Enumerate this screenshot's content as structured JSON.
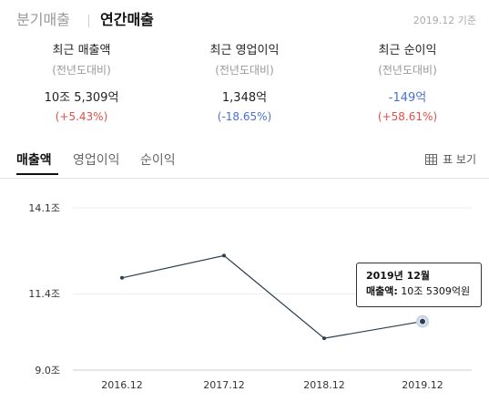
{
  "period_tabs": {
    "quarterly": "분기매출",
    "annual": "연간매출"
  },
  "as_of": "2019.12 기준",
  "stats": [
    {
      "label": "최근 매출액",
      "sub": "(전년도대비)",
      "value": "10조 5,309억",
      "change": "(+5.43%)",
      "value_color": "#222222",
      "change_color": "#e0504a"
    },
    {
      "label": "최근 영업이익",
      "sub": "(전년도대비)",
      "value": "1,348억",
      "change": "(-18.65%)",
      "value_color": "#222222",
      "change_color": "#4a6fd8"
    },
    {
      "label": "최근 순이익",
      "sub": "(전년도대비)",
      "value": "-149억",
      "change": "(+58.61%)",
      "value_color": "#4a6fd8",
      "change_color": "#e0504a"
    }
  ],
  "chart_tabs": {
    "sales": "매출액",
    "operating": "영업이익",
    "net": "순이익"
  },
  "table_view": {
    "icon": "table-grid-icon",
    "label": "표 보기"
  },
  "chart_data": {
    "type": "line",
    "categories": [
      "2016.12",
      "2017.12",
      "2018.12",
      "2019.12"
    ],
    "values": [
      11.9,
      12.6,
      10.0,
      10.5309
    ],
    "y_ticks": [
      "14.1조",
      "11.4조",
      "9.0조"
    ],
    "y_tick_values": [
      14.1,
      11.4,
      9.0
    ],
    "ylim": [
      9.0,
      14.1
    ],
    "grid": "horizontal",
    "line_color": "#2c3e50"
  },
  "tooltip": {
    "title": "2019년 12월",
    "key": "매출액:",
    "value": "10조 5309억원"
  }
}
